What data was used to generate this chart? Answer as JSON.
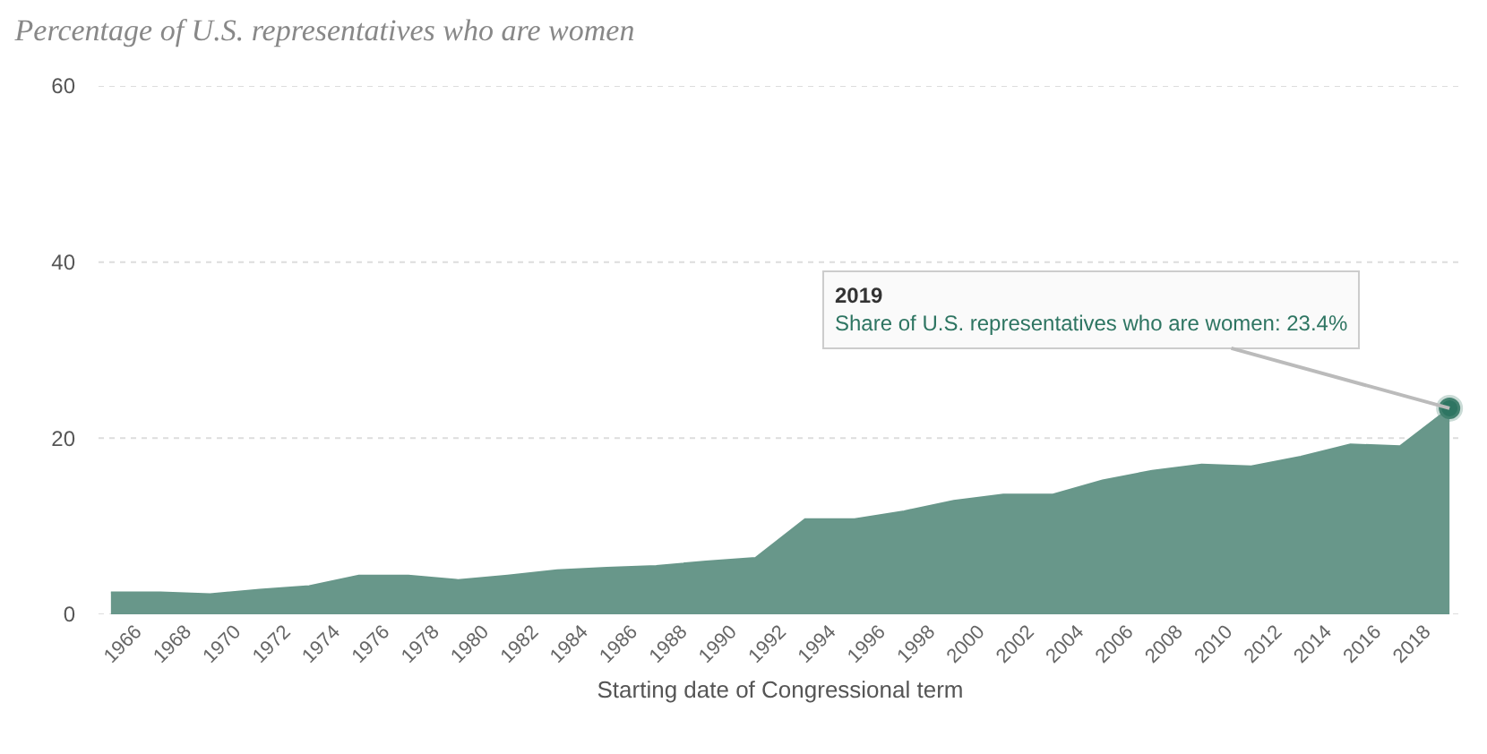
{
  "chart_data": {
    "type": "area",
    "title": "Percentage of U.S. representatives who are women",
    "xlabel": "Starting date of Congressional term",
    "x": [
      1965,
      1967,
      1969,
      1971,
      1973,
      1975,
      1977,
      1979,
      1981,
      1983,
      1985,
      1987,
      1989,
      1991,
      1993,
      1995,
      1997,
      1999,
      2001,
      2003,
      2005,
      2007,
      2009,
      2011,
      2013,
      2015,
      2017,
      2019
    ],
    "series": [
      {
        "color": "#68978a",
        "values": [
          2.5,
          2.5,
          2.3,
          2.8,
          3.2,
          4.4,
          4.4,
          3.9,
          4.4,
          5.0,
          5.3,
          5.5,
          6.0,
          6.4,
          10.8,
          10.8,
          11.7,
          12.9,
          13.6,
          13.6,
          15.2,
          16.3,
          17.0,
          16.8,
          17.9,
          19.3,
          19.1,
          23.4
        ]
      },
      {
        "type": "scatter",
        "color": "#2e7562",
        "marker": "circle",
        "x": [
          2019
        ],
        "values": [
          23.4
        ]
      }
    ],
    "xlim": [
      1964.5,
      2019.5
    ],
    "xticks": [
      1966,
      1968,
      1970,
      1972,
      1974,
      1976,
      1978,
      1980,
      1982,
      1984,
      1986,
      1988,
      1990,
      1992,
      1994,
      1996,
      1998,
      2000,
      2002,
      2004,
      2006,
      2008,
      2010,
      2012,
      2014,
      2016,
      2018
    ],
    "ylim": [
      0,
      60
    ],
    "yticks": [
      0,
      20,
      40,
      60
    ],
    "grid": "y",
    "annotations": [
      {
        "text": "2019\nShare of U.S. representatives who are women: 23.4%",
        "x": 2019,
        "y": 23.4
      }
    ]
  }
}
